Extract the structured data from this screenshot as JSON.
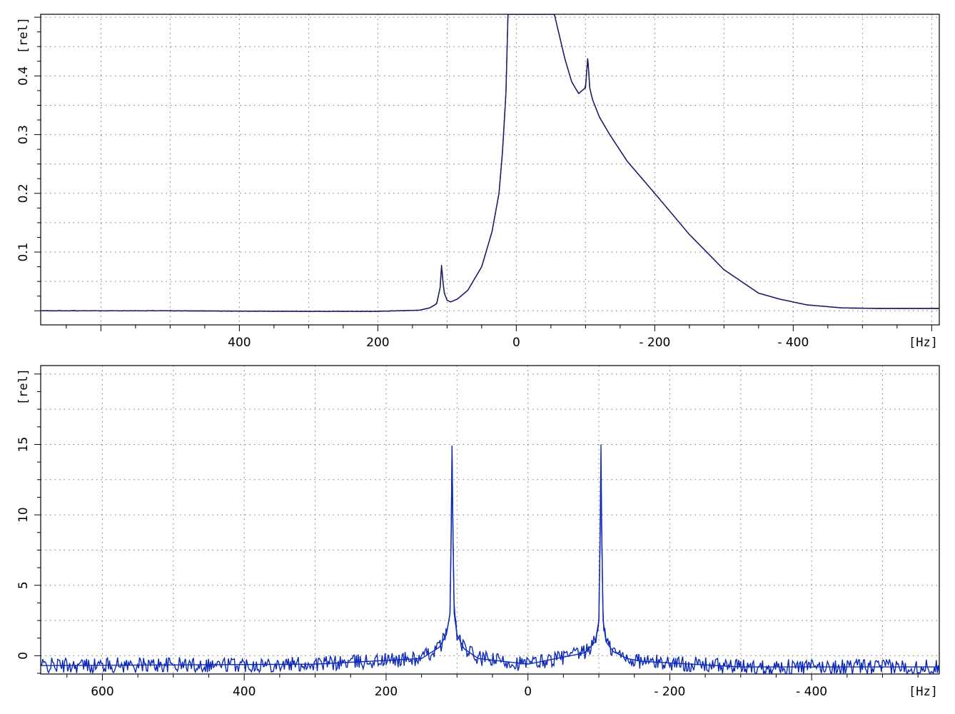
{
  "chart_data": [
    {
      "type": "line",
      "x_reversed": true,
      "xlim": [
        687,
        -611
      ],
      "ylim": [
        -0.024,
        0.505
      ],
      "x_unit": "[Hz]",
      "y_unit": "[rel]",
      "x_ticks": [
        400,
        200,
        0,
        -200,
        -400
      ],
      "x_tick_labels": [
        "400",
        "200",
        "0",
        "- 200",
        "- 400"
      ],
      "y_ticks": [
        0.1,
        0.2,
        0.3,
        0.4
      ],
      "y_tick_labels": [
        "0.1",
        "0.2",
        "0.3",
        "0.4"
      ],
      "grid": true,
      "line_color": "#1a1a66",
      "series": [
        {
          "x": [
            687,
            500,
            320,
            200,
            140,
            125,
            115,
            110,
            108,
            106,
            104,
            100,
            95,
            85,
            70,
            50,
            35,
            25,
            20,
            15,
            12,
            -55,
            -60,
            -70,
            -80,
            -90,
            -100,
            -103,
            -104,
            -106,
            -110,
            -120,
            -135,
            -160,
            -200,
            -250,
            -300,
            -350,
            -380,
            -420,
            -470,
            -520,
            -611
          ],
          "y": [
            0.0,
            0.0,
            -0.001,
            -0.001,
            0.001,
            0.005,
            0.012,
            0.04,
            0.078,
            0.05,
            0.03,
            0.018,
            0.015,
            0.02,
            0.035,
            0.075,
            0.135,
            0.2,
            0.27,
            0.37,
            0.505,
            0.505,
            0.48,
            0.43,
            0.39,
            0.37,
            0.38,
            0.43,
            0.42,
            0.38,
            0.36,
            0.33,
            0.3,
            0.255,
            0.2,
            0.13,
            0.07,
            0.03,
            0.02,
            0.01,
            0.005,
            0.004,
            0.004
          ]
        }
      ]
    },
    {
      "type": "line",
      "x_reversed": true,
      "xlim": [
        687,
        -580
      ],
      "ylim": [
        -1.3,
        20.6
      ],
      "x_unit": "[Hz]",
      "y_unit": "[rel]",
      "x_ticks": [
        600,
        400,
        200,
        0,
        -200,
        -400
      ],
      "x_tick_labels": [
        "600",
        "400",
        "200",
        "0",
        "- 200",
        "- 400"
      ],
      "y_ticks": [
        0,
        5,
        10,
        15
      ],
      "y_tick_labels": [
        "0",
        "5",
        "10",
        "15"
      ],
      "grid": true,
      "line_color": "#0d28b4",
      "series": [
        {
          "x": [
            687,
            300,
            150,
            125,
            115,
            110,
            108,
            107,
            106,
            104,
            100,
            90,
            70,
            0,
            -80,
            -95,
            -100,
            -102,
            -103,
            -104,
            -106,
            -110,
            -120,
            -140,
            -160,
            -300,
            -580
          ],
          "y": [
            -0.7,
            -0.6,
            -0.2,
            0.6,
            1.5,
            3.0,
            9.0,
            14.7,
            10.0,
            3.0,
            1.5,
            0.5,
            -0.2,
            -0.6,
            0.2,
            1.0,
            2.5,
            9.0,
            15.0,
            9.0,
            2.5,
            1.0,
            0.3,
            -0.2,
            -0.4,
            -0.8,
            -0.8
          ]
        }
      ]
    }
  ]
}
